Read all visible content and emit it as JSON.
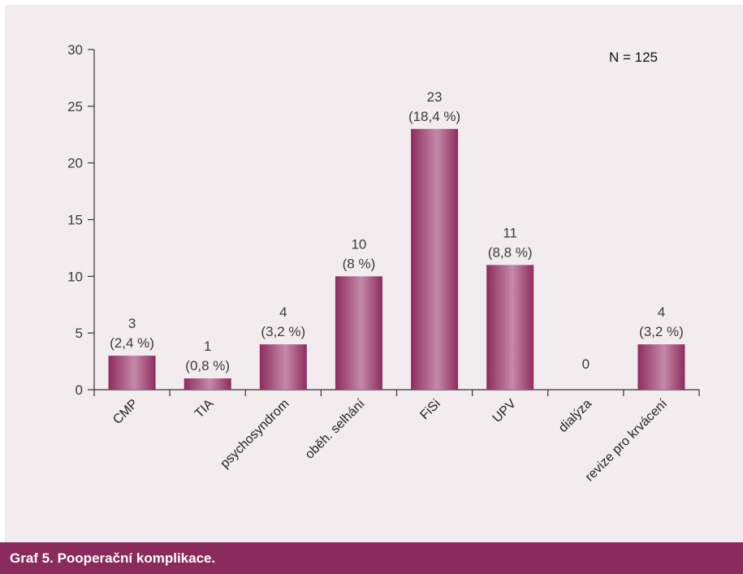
{
  "caption": "Graf 5. Pooperační komplikace.",
  "colors": {
    "panel_background": "#f2ecef",
    "caption_bar": "#8b2a5c",
    "bar_dark": "#8e2c5e",
    "bar_light": "#c48aa8",
    "axis": "#333333",
    "text": "#3a3a3a"
  },
  "chart_data": {
    "type": "bar",
    "title": "",
    "xlabel": "",
    "ylabel": "",
    "annotation": "N = 125",
    "ylim": [
      0,
      30
    ],
    "yticks": [
      0,
      5,
      10,
      15,
      20,
      25,
      30
    ],
    "categories": [
      "CMP",
      "TIA",
      "psychosyndrom",
      "oběh. selhání",
      "FiSi",
      "UPV",
      "dialýza",
      "revize pro krvácení"
    ],
    "values": [
      3,
      1,
      4,
      10,
      23,
      11,
      0,
      4
    ],
    "labels": [
      {
        "count": "3",
        "percent": "(2,4 %)"
      },
      {
        "count": "1",
        "percent": "(0,8 %)"
      },
      {
        "count": "4",
        "percent": "(3,2 %)"
      },
      {
        "count": "10",
        "percent": "(8 %)"
      },
      {
        "count": "23",
        "percent": "(18,4 %)"
      },
      {
        "count": "11",
        "percent": "(8,8 %)"
      },
      {
        "count": "0",
        "percent": ""
      },
      {
        "count": "4",
        "percent": "(3,2 %)"
      }
    ],
    "grid": false,
    "legend": "none"
  }
}
